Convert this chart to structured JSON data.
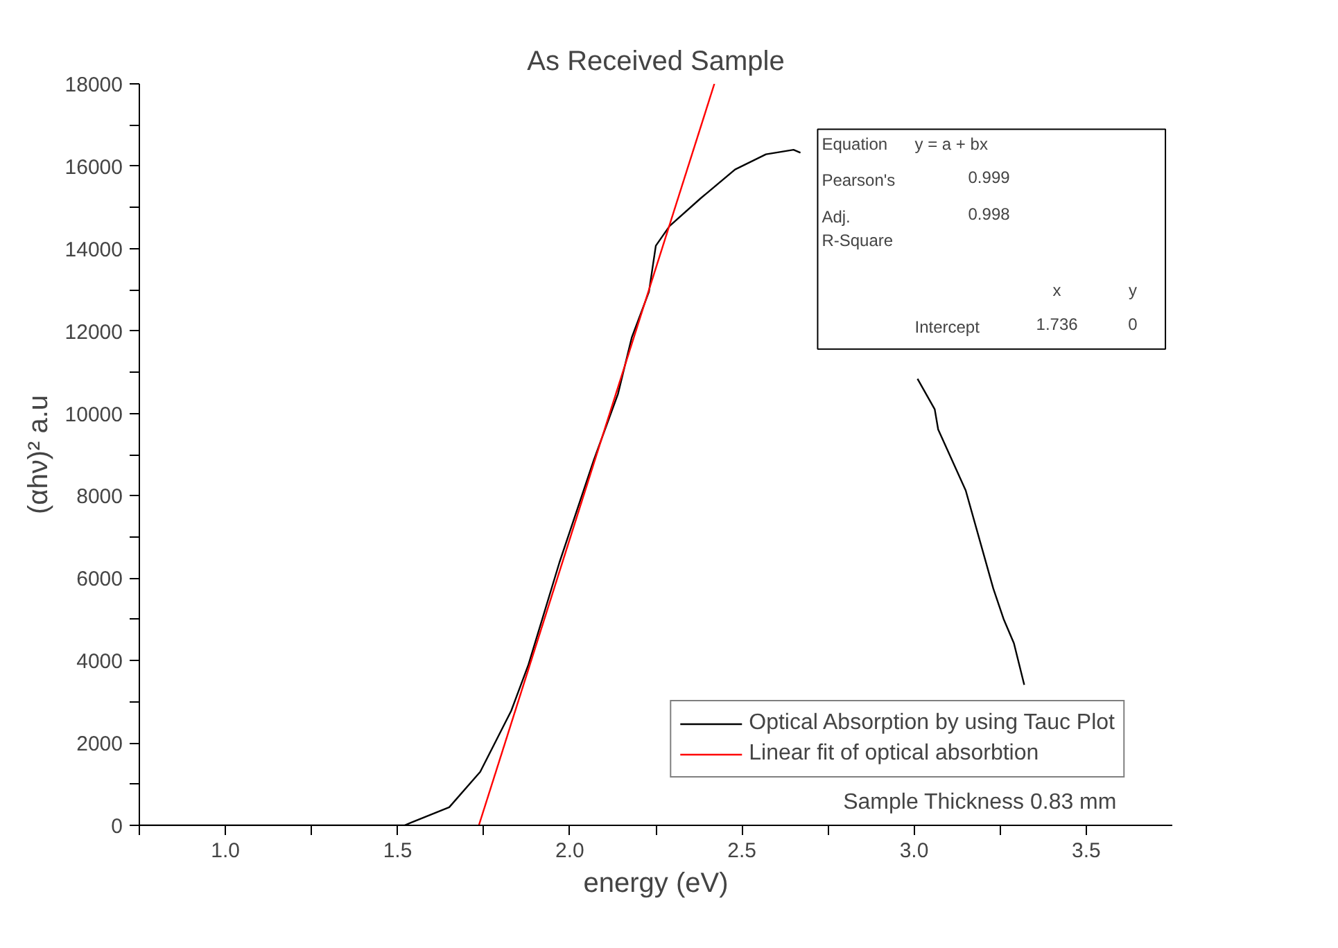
{
  "chart_data": {
    "type": "line",
    "title": "As Received Sample",
    "xlabel": "energy (eV)",
    "ylabel": "(αhν)² a.u",
    "xlim": [
      0.75,
      3.75
    ],
    "ylim": [
      0,
      18000
    ],
    "xticks": [
      {
        "value": 0.75,
        "label": null
      },
      {
        "value": 1,
        "label": "1.0"
      },
      {
        "value": 1.25,
        "label": null
      },
      {
        "value": 1.5,
        "label": "1.5"
      },
      {
        "value": 1.75,
        "label": null
      },
      {
        "value": 2,
        "label": "2.0"
      },
      {
        "value": 2.25,
        "label": null
      },
      {
        "value": 2.5,
        "label": "2.5"
      },
      {
        "value": 2.75,
        "label": null
      },
      {
        "value": 3,
        "label": "3.0"
      },
      {
        "value": 3.25,
        "label": null
      },
      {
        "value": 3.5,
        "label": "3.5"
      }
    ],
    "yticks": [
      0,
      {
        "value": 1000,
        "label": null
      },
      2000,
      {
        "value": 3000,
        "label": null
      },
      4000,
      {
        "value": 5000,
        "label": null
      },
      6000,
      {
        "value": 7000,
        "label": null
      },
      8000,
      {
        "value": 9000,
        "label": null
      },
      10000,
      {
        "value": 11000,
        "label": null
      },
      12000,
      {
        "value": 13000,
        "label": null
      },
      14000,
      {
        "value": 15000,
        "label": null
      },
      16000,
      {
        "value": 17000,
        "label": null
      },
      18000
    ],
    "series": [
      {
        "name": "Optical Absorption by using Tauc Plot",
        "color": "#000000",
        "x": [
          0.75,
          1.52,
          1.54,
          1.65,
          1.74,
          1.83,
          1.88,
          1.97,
          2.07,
          2.14,
          2.18,
          2.23,
          2.25,
          2.29,
          2.38,
          2.48,
          2.57,
          2.65,
          2.67,
          2.8,
          3.01,
          3.06,
          3.07,
          3.15,
          3.23,
          3.26,
          3.29,
          3.32
        ],
        "values": [
          0,
          0,
          70,
          440,
          1300,
          2780,
          3900,
          6380,
          8870,
          10470,
          11840,
          12950,
          14070,
          14550,
          15220,
          15920,
          16290,
          16400,
          16330,
          null,
          10840,
          10100,
          9610,
          8130,
          5750,
          5010,
          4420,
          3410
        ]
      },
      {
        "name": "Linear fit of optical absorbtion",
        "color": "#ff0000",
        "x": [
          1.736,
          2.42
        ],
        "values": [
          0,
          18000
        ]
      }
    ],
    "legend": "bottom right",
    "grid": false,
    "annotations": [
      "Sample Thickness 0.83 mm",
      "Equation",
      "y = a + bx",
      "Pearson's",
      "0.999",
      "Adj.\nR-Square",
      "0.998",
      "x",
      "y",
      "Intercept",
      "1.736",
      "0"
    ]
  }
}
